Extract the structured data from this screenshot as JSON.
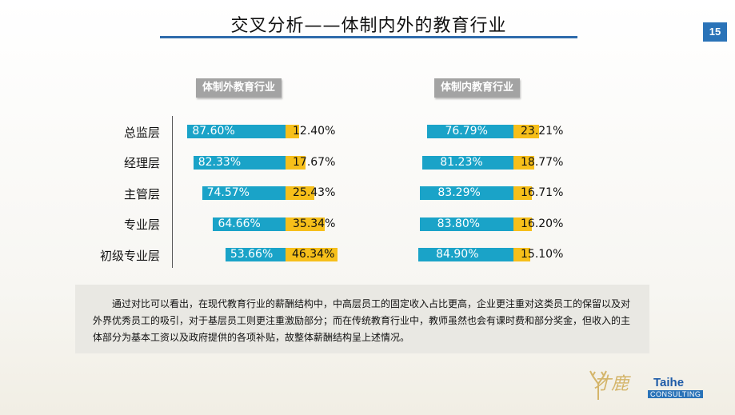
{
  "slide": {
    "title": "交叉分析——体制内外的教育行业",
    "page_number": "15",
    "summary": "通过对比可以看出，在现代教育行业的薪酬结构中，中高层员工的固定收入占比更高，企业更注重对这类员工的保留以及对外界优秀员工的吸引，对于基层员工则更注重激励部分；而在传统教育行业中，教师虽然也会有课时费和部分奖金，但收入的主体部分为基本工资以及政府提供的各项补贴，故整体薪酬结构呈上述情况。",
    "logo": {
      "cn": "才鹿",
      "en": "Taihe",
      "sub": "CONSULTING"
    }
  },
  "colors": {
    "fixed": "#1aa3c8",
    "variable": "#f6bf1a",
    "title_rule": "#2e6bab",
    "page_badge": "#2a73b8"
  },
  "chart_data": [
    {
      "type": "bar",
      "stacked": true,
      "orientation": "horizontal",
      "title": "体制外教育行业",
      "categories": [
        "总监层",
        "经理层",
        "主管层",
        "专业层",
        "初级专业层"
      ],
      "series": [
        {
          "values": [
            87.6,
            82.33,
            74.57,
            64.66,
            53.66
          ],
          "labels": [
            "87.60%",
            "82.33%",
            "74.57%",
            "64.66%",
            "53.66%"
          ]
        },
        {
          "values": [
            12.4,
            17.67,
            25.43,
            35.34,
            46.34
          ],
          "labels": [
            "12.40%",
            "17.67%",
            "25.43%",
            "35.34%",
            "46.34%"
          ]
        }
      ]
    },
    {
      "type": "bar",
      "stacked": true,
      "orientation": "horizontal",
      "title": "体制内教育行业",
      "categories": [
        "总监层",
        "经理层",
        "主管层",
        "专业层",
        "初级专业层"
      ],
      "series": [
        {
          "values": [
            76.79,
            81.23,
            83.29,
            83.8,
            84.9
          ],
          "labels": [
            "76.79%",
            "81.23%",
            "83.29%",
            "83.80%",
            "84.90%"
          ]
        },
        {
          "values": [
            23.21,
            18.77,
            16.71,
            16.2,
            15.1
          ],
          "labels": [
            "23.21%",
            "18.77%",
            "16.71%",
            "16.20%",
            "15.10%"
          ]
        }
      ]
    }
  ]
}
